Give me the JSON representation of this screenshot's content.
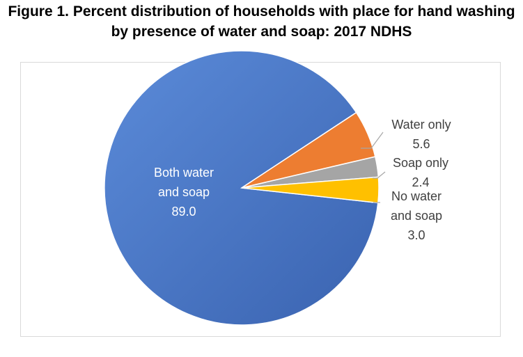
{
  "title": {
    "line1": "Figure 1. Percent distribution of households with place for hand washing",
    "line2": "by presence of water and soap: 2017 NDHS"
  },
  "chart_data": {
    "type": "pie",
    "categories": [
      "Both water and soap",
      "Water only",
      "Soap only",
      "No water and soap"
    ],
    "values": [
      89.0,
      5.6,
      2.4,
      3.0
    ],
    "labels": [
      {
        "lines": [
          "Both water",
          "and soap"
        ],
        "value": "89.0"
      },
      {
        "lines": [
          "Water only"
        ],
        "value": "5.6"
      },
      {
        "lines": [
          "Soap only"
        ],
        "value": "2.4"
      },
      {
        "lines": [
          "No water",
          "and soap"
        ],
        "value": "3.0"
      }
    ],
    "colors": [
      "#4472c4",
      "#ed7d31",
      "#a5a5a5",
      "#ffc000"
    ],
    "label_colors": [
      "#ffffff",
      "#404040",
      "#404040",
      "#404040"
    ],
    "legend": "none"
  }
}
